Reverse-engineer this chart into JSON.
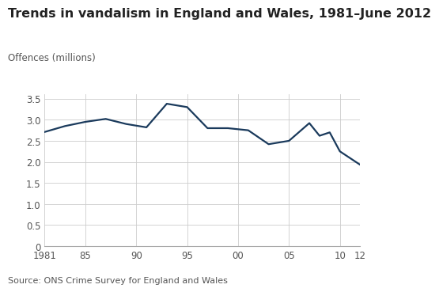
{
  "title": "Trends in vandalism in England and Wales, 1981–June 2012",
  "ylabel": "Offences (millions)",
  "source": "Source: ONS Crime Survey for England and Wales",
  "line_color": "#1a3a5c",
  "background_color": "#ffffff",
  "grid_color": "#cccccc",
  "x": [
    1981,
    1983,
    1985,
    1987,
    1989,
    1991,
    1993,
    1995,
    1997,
    1999,
    2001,
    2003,
    2005,
    2007,
    2008,
    2009,
    2010,
    2012
  ],
  "y": [
    2.71,
    2.85,
    2.95,
    3.02,
    2.9,
    2.82,
    3.38,
    3.3,
    2.8,
    2.8,
    2.75,
    2.42,
    2.5,
    2.92,
    2.62,
    2.7,
    2.25,
    1.93
  ],
  "xlim": [
    1981,
    2012
  ],
  "ylim": [
    0,
    3.6
  ],
  "yticks": [
    0,
    0.5,
    1.0,
    1.5,
    2.0,
    2.5,
    3.0,
    3.5
  ],
  "xtick_labels": [
    "1981",
    "85",
    "90",
    "95",
    "00",
    "05",
    "10",
    "12"
  ],
  "xtick_positions": [
    1981,
    1985,
    1990,
    1995,
    2000,
    2005,
    2010,
    2012
  ],
  "line_width": 1.6,
  "title_fontsize": 11.5,
  "ylabel_fontsize": 8.5,
  "tick_fontsize": 8.5,
  "source_fontsize": 8.0
}
